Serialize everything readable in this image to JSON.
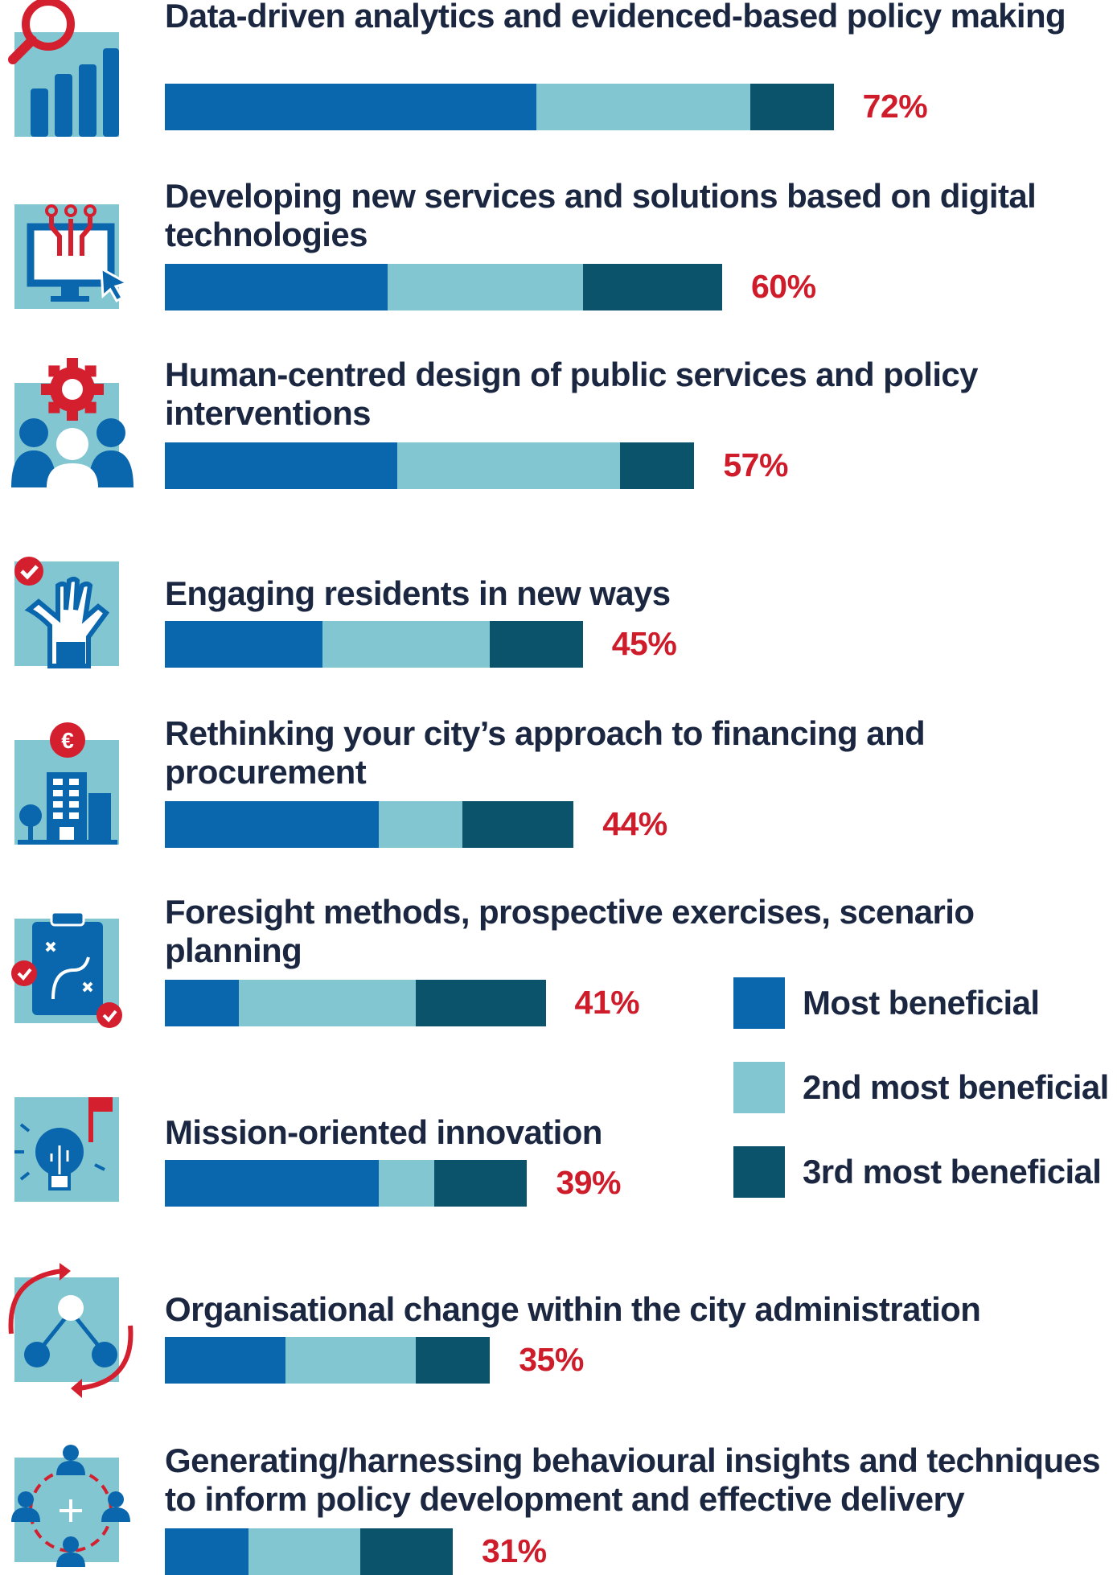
{
  "chart_data": {
    "type": "bar",
    "orientation": "horizontal",
    "stacked": true,
    "categories": [
      "Data-driven analytics and evidenced-based policy making",
      "Developing new services and solutions based on digital technologies",
      "Human-centred design of public services and policy interventions",
      "Engaging residents in new ways",
      "Rethinking your city’s approach to financing and procurement",
      "Foresight methods, prospective exercises, scenario planning",
      "Mission-oriented innovation",
      "Organisational change within the city administration",
      "Generating/harnessing behavioural insights and techniques to inform policy development and effective delivery"
    ],
    "series": [
      {
        "name": "Most beneficial",
        "color": "#0a66ad",
        "values": [
          40,
          24,
          25,
          17,
          23,
          8,
          23,
          13,
          9
        ]
      },
      {
        "name": "2nd most beneficial",
        "color": "#82c6d1",
        "values": [
          23,
          21,
          24,
          18,
          9,
          19,
          6,
          14,
          12
        ]
      },
      {
        "name": "3rd most beneficial",
        "color": "#0b526b",
        "values": [
          9,
          15,
          8,
          10,
          12,
          14,
          10,
          8,
          10
        ]
      }
    ],
    "totals": [
      "72%",
      "60%",
      "57%",
      "45%",
      "44%",
      "41%",
      "39%",
      "35%",
      "31%"
    ],
    "icons": [
      "analytics-magnifier-icon",
      "computer-circuit-icon",
      "people-gear-icon",
      "raised-hands-icon",
      "euro-building-icon",
      "strategy-clipboard-icon",
      "lightbulb-flag-icon",
      "organisation-cycle-icon",
      "people-network-icon"
    ],
    "xlim": [
      0,
      100
    ],
    "legend_position": "right",
    "grid": false
  }
}
